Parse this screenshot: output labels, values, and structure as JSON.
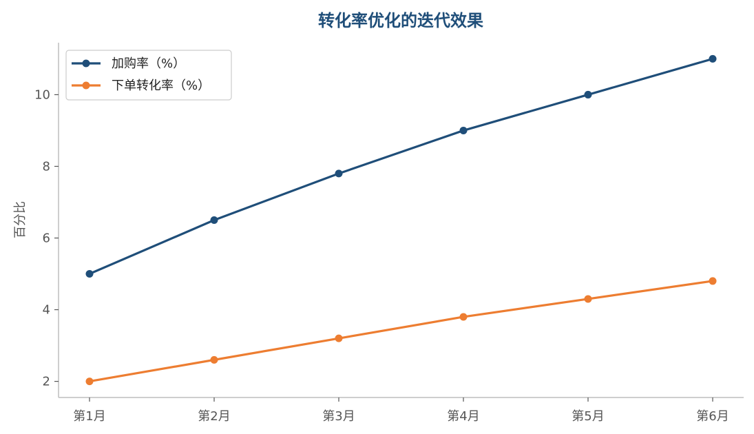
{
  "chart_data": {
    "type": "line",
    "title": "转化率优化的迭代效果",
    "xlabel": "",
    "ylabel": "百分比",
    "categories": [
      "第1月",
      "第2月",
      "第3月",
      "第4月",
      "第5月",
      "第6月"
    ],
    "ylim": [
      1.55,
      11.45
    ],
    "yticks": [
      2,
      4,
      6,
      8,
      10
    ],
    "grid": false,
    "legend_position": "top-left",
    "series": [
      {
        "name": "加购率（%）",
        "values": [
          5.0,
          6.5,
          7.8,
          9.0,
          10.0,
          11.0
        ],
        "color": "#1f4e79"
      },
      {
        "name": "下单转化率（%）",
        "values": [
          2.0,
          2.6,
          3.2,
          3.8,
          4.3,
          4.8
        ],
        "color": "#ed7d31"
      }
    ]
  }
}
